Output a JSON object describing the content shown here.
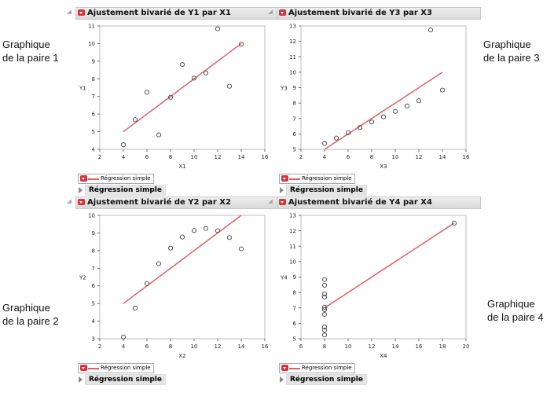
{
  "captions": [
    {
      "line1": "Graphique",
      "line2": "de la paire 1"
    },
    {
      "line1": "Graphique",
      "line2": "de la paire 2"
    },
    {
      "line1": "Graphique",
      "line2": "de la paire 3"
    },
    {
      "line1": "Graphique",
      "line2": "de la paire 4"
    }
  ],
  "chart_data": [
    {
      "type": "scatter",
      "title": "Ajustement bivarié de Y1 par X1",
      "xlabel": "X1",
      "ylabel": "Y1",
      "xlim": [
        2,
        16
      ],
      "ylim": [
        4,
        11
      ],
      "xticks": [
        2,
        4,
        6,
        8,
        10,
        12,
        14,
        16
      ],
      "yticks": [
        4,
        5,
        6,
        7,
        8,
        9,
        10,
        11
      ],
      "x": [
        10,
        8,
        13,
        9,
        11,
        14,
        6,
        4,
        12,
        7,
        5
      ],
      "y": [
        8.04,
        6.95,
        7.58,
        8.81,
        8.33,
        9.96,
        7.24,
        4.26,
        10.84,
        4.82,
        5.68
      ],
      "fit": {
        "intercept": 3.0,
        "slope": 0.5,
        "color": "#e06060"
      },
      "legend": "Régression simple",
      "report": "Régression simple"
    },
    {
      "type": "scatter",
      "title": "Ajustement bivarié de Y2 par X2",
      "xlabel": "X2",
      "ylabel": "Y2",
      "xlim": [
        2,
        16
      ],
      "ylim": [
        3,
        10
      ],
      "xticks": [
        2,
        4,
        6,
        8,
        10,
        12,
        14,
        16
      ],
      "yticks": [
        3,
        4,
        5,
        6,
        7,
        8,
        9,
        10
      ],
      "x": [
        10,
        8,
        13,
        9,
        11,
        14,
        6,
        4,
        12,
        7,
        5
      ],
      "y": [
        9.14,
        8.14,
        8.74,
        8.77,
        9.26,
        8.1,
        6.13,
        3.1,
        9.13,
        7.26,
        4.74
      ],
      "fit": {
        "intercept": 3.0,
        "slope": 0.5,
        "color": "#e06060"
      },
      "legend": "Régression simple",
      "report": "Régression simple"
    },
    {
      "type": "scatter",
      "title": "Ajustement bivarié de Y3 par X3",
      "xlabel": "X3",
      "ylabel": "Y3",
      "xlim": [
        2,
        16
      ],
      "ylim": [
        5,
        13
      ],
      "xticks": [
        2,
        4,
        6,
        8,
        10,
        12,
        14,
        16
      ],
      "yticks": [
        5,
        6,
        7,
        8,
        9,
        10,
        11,
        12,
        13
      ],
      "x": [
        10,
        8,
        13,
        9,
        11,
        14,
        6,
        4,
        12,
        7,
        5
      ],
      "y": [
        7.46,
        6.77,
        12.74,
        7.11,
        7.81,
        8.84,
        6.08,
        5.39,
        8.15,
        6.42,
        5.73
      ],
      "fit": {
        "intercept": 3.0,
        "slope": 0.5,
        "color": "#e06060"
      },
      "legend": "Régression simple",
      "report": "Régression simple"
    },
    {
      "type": "scatter",
      "title": "Ajustement bivarié de Y4 par X4",
      "xlabel": "X4",
      "ylabel": "Y4",
      "xlim": [
        6,
        20
      ],
      "ylim": [
        5,
        13
      ],
      "xticks": [
        6,
        8,
        10,
        12,
        14,
        16,
        18,
        20
      ],
      "yticks": [
        5,
        6,
        7,
        8,
        9,
        10,
        11,
        12,
        13
      ],
      "x": [
        8,
        8,
        8,
        8,
        8,
        8,
        8,
        19,
        8,
        8,
        8
      ],
      "y": [
        6.58,
        5.76,
        7.71,
        8.84,
        8.47,
        7.04,
        5.25,
        12.5,
        5.56,
        7.91,
        6.89
      ],
      "fit": {
        "intercept": 3.0,
        "slope": 0.5,
        "color": "#e06060"
      },
      "legend": "Régression simple",
      "report": "Régression simple"
    }
  ]
}
